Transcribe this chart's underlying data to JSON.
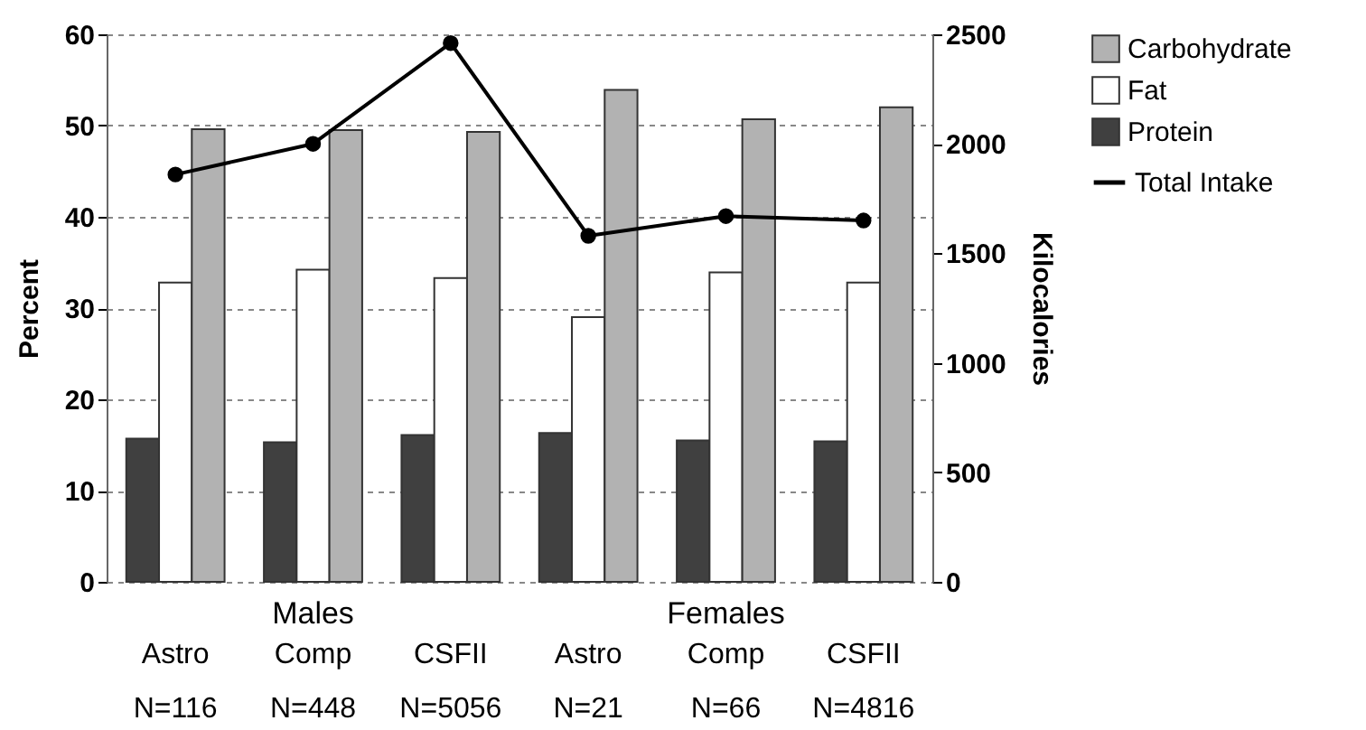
{
  "chart_data": {
    "type": "bar",
    "categories": [
      "Astro\nN=116",
      "Comp\nN=448",
      "CSFII\nN=5056",
      "Astro\nN=21",
      "Comp\nN=66",
      "CSFII\nN=4816"
    ],
    "annotations": [
      "Males",
      "Females"
    ],
    "ylabel": "Percent",
    "y2label": "Kilocalories",
    "ylim": [
      0,
      60
    ],
    "yticks": [
      0,
      10,
      20,
      30,
      40,
      50,
      60
    ],
    "y2lim": [
      0,
      2500
    ],
    "y2ticks": [
      0,
      500,
      1000,
      1500,
      2000,
      2500
    ],
    "series": [
      {
        "name": "Protein",
        "color": "#404040",
        "values": [
          15.7,
          15.3,
          16.1,
          16.3,
          15.5,
          15.4
        ]
      },
      {
        "name": "Fat",
        "color": "#ffffff",
        "values": [
          32.8,
          34.2,
          33.3,
          29.0,
          33.9,
          32.8
        ]
      },
      {
        "name": "Carbohydrate",
        "color": "#b2b2b2",
        "values": [
          49.6,
          49.5,
          49.3,
          53.9,
          50.7,
          52.0
        ]
      },
      {
        "name": "Total Intake",
        "color": "#000000",
        "type": "line",
        "axis": "y2",
        "values": [
          1860,
          2000,
          2460,
          1580,
          1670,
          1650
        ]
      }
    ],
    "marker": "circle",
    "grid": "y",
    "legend": "right"
  }
}
